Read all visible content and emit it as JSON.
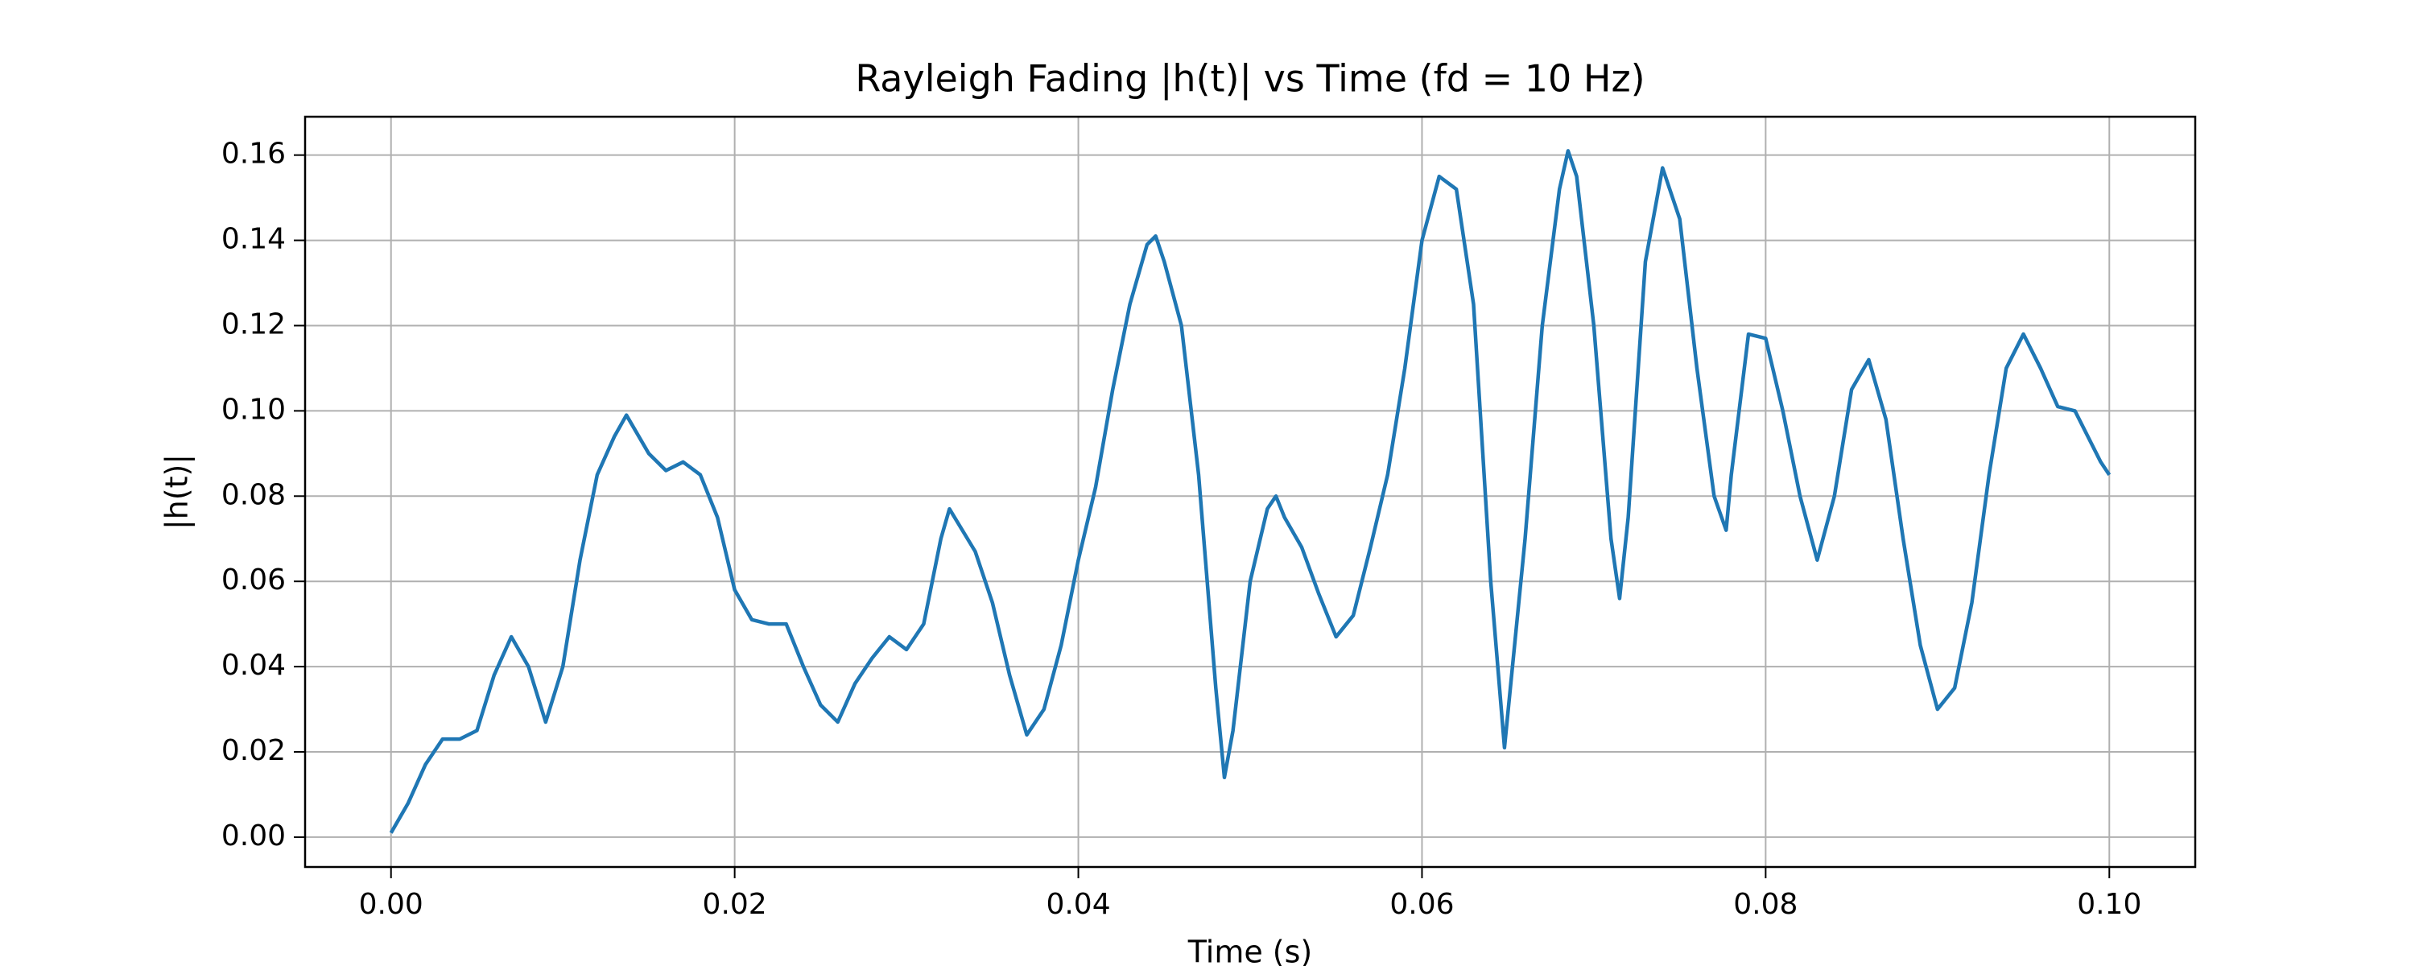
{
  "chart_data": {
    "type": "line",
    "title": "Rayleigh Fading |h(t)| vs Time (fd = 10 Hz)",
    "xlabel": "Time (s)",
    "ylabel": "|h(t)|",
    "x": [
      0.0,
      0.001,
      0.002,
      0.003,
      0.004,
      0.005,
      0.006,
      0.007,
      0.008,
      0.009,
      0.01,
      0.011,
      0.012,
      0.013,
      0.0137,
      0.015,
      0.016,
      0.017,
      0.018,
      0.019,
      0.02,
      0.021,
      0.022,
      0.023,
      0.024,
      0.025,
      0.026,
      0.027,
      0.028,
      0.029,
      0.03,
      0.031,
      0.032,
      0.0325,
      0.034,
      0.035,
      0.036,
      0.037,
      0.038,
      0.039,
      0.04,
      0.041,
      0.042,
      0.043,
      0.044,
      0.0445,
      0.045,
      0.046,
      0.047,
      0.048,
      0.0485,
      0.049,
      0.05,
      0.051,
      0.0515,
      0.052,
      0.053,
      0.054,
      0.055,
      0.056,
      0.057,
      0.058,
      0.059,
      0.06,
      0.061,
      0.062,
      0.063,
      0.064,
      0.0648,
      0.066,
      0.067,
      0.068,
      0.0685,
      0.069,
      0.07,
      0.071,
      0.0715,
      0.072,
      0.073,
      0.074,
      0.075,
      0.076,
      0.077,
      0.0777,
      0.078,
      0.079,
      0.08,
      0.081,
      0.082,
      0.083,
      0.084,
      0.085,
      0.086,
      0.087,
      0.088,
      0.089,
      0.09,
      0.091,
      0.092,
      0.093,
      0.094,
      0.095,
      0.096,
      0.097,
      0.098,
      0.099,
      0.0995,
      0.1
    ],
    "series": [
      {
        "name": "|h(t)|",
        "color": "#1f77b4",
        "values": [
          0.001,
          0.008,
          0.017,
          0.023,
          0.023,
          0.025,
          0.038,
          0.047,
          0.04,
          0.027,
          0.04,
          0.065,
          0.085,
          0.094,
          0.099,
          0.09,
          0.086,
          0.088,
          0.085,
          0.075,
          0.058,
          0.051,
          0.05,
          0.05,
          0.04,
          0.031,
          0.027,
          0.036,
          0.042,
          0.047,
          0.044,
          0.05,
          0.07,
          0.077,
          0.067,
          0.055,
          0.038,
          0.024,
          0.03,
          0.045,
          0.065,
          0.082,
          0.105,
          0.125,
          0.139,
          0.141,
          0.135,
          0.12,
          0.085,
          0.035,
          0.014,
          0.025,
          0.06,
          0.077,
          0.08,
          0.075,
          0.068,
          0.057,
          0.047,
          0.052,
          0.068,
          0.085,
          0.11,
          0.14,
          0.155,
          0.152,
          0.125,
          0.06,
          0.021,
          0.07,
          0.12,
          0.152,
          0.161,
          0.155,
          0.12,
          0.07,
          0.056,
          0.075,
          0.135,
          0.157,
          0.145,
          0.11,
          0.08,
          0.072,
          0.085,
          0.118,
          0.117,
          0.1,
          0.08,
          0.065,
          0.08,
          0.105,
          0.112,
          0.098,
          0.07,
          0.045,
          0.03,
          0.035,
          0.055,
          0.085,
          0.11,
          0.118,
          0.11,
          0.101,
          0.1,
          0.092,
          0.088,
          0.085
        ]
      }
    ],
    "xlim": [
      -0.005,
      0.105
    ],
    "ylim": [
      -0.007,
      0.169
    ],
    "xticks": [
      {
        "value": 0,
        "label": "0.00"
      },
      {
        "value": 0.02,
        "label": "0.02"
      },
      {
        "value": 0.04,
        "label": "0.04"
      },
      {
        "value": 0.06,
        "label": "0.06"
      },
      {
        "value": 0.08,
        "label": "0.08"
      },
      {
        "value": 0.1,
        "label": "0.10"
      }
    ],
    "yticks": [
      {
        "value": 0,
        "label": "0.00"
      },
      {
        "value": 0.02,
        "label": "0.02"
      },
      {
        "value": 0.04,
        "label": "0.04"
      },
      {
        "value": 0.06,
        "label": "0.06"
      },
      {
        "value": 0.08,
        "label": "0.08"
      },
      {
        "value": 0.1,
        "label": "0.10"
      },
      {
        "value": 0.12,
        "label": "0.12"
      },
      {
        "value": 0.14,
        "label": "0.14"
      },
      {
        "value": 0.16,
        "label": "0.16"
      }
    ],
    "grid": true
  }
}
